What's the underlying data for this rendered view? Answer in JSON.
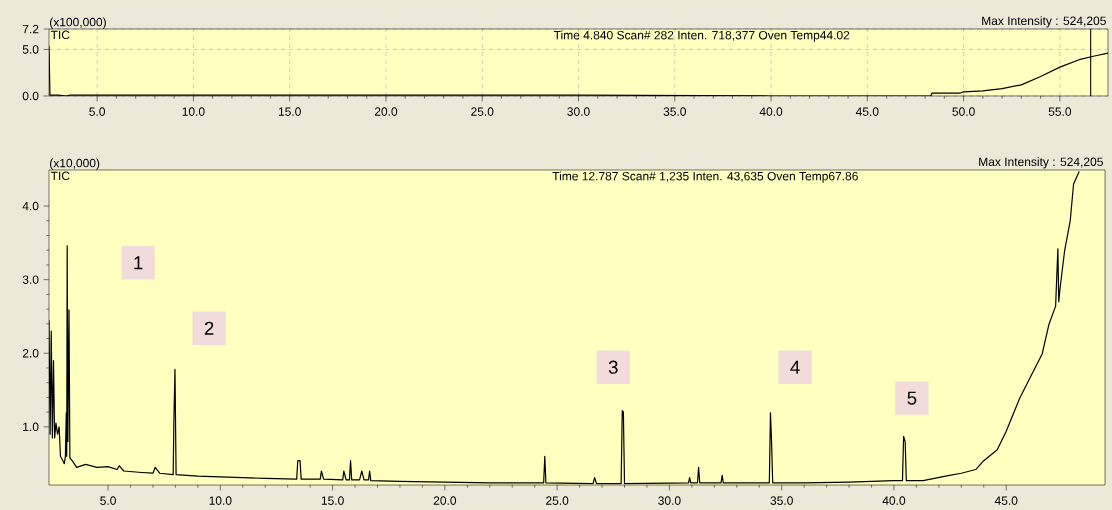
{
  "chart_data": [
    {
      "type": "line",
      "ylabel": "(x100,000)",
      "xlim": [
        2.5,
        57.5
      ],
      "ylim": [
        0.0,
        7.2
      ],
      "grid": true,
      "xticks": [
        {
          "value": 5,
          "label": "5.0"
        },
        {
          "value": 10,
          "label": "10.0"
        },
        {
          "value": 15,
          "label": "15.0"
        },
        {
          "value": 20,
          "label": "20.0"
        },
        {
          "value": 25,
          "label": "25.0"
        },
        {
          "value": 30,
          "label": "30.0"
        },
        {
          "value": 35,
          "label": "35.0"
        },
        {
          "value": 40,
          "label": "40.0"
        },
        {
          "value": 45,
          "label": "45.0"
        },
        {
          "value": 50,
          "label": "50.0"
        },
        {
          "value": 55,
          "label": "55.0"
        }
      ],
      "yticks": [
        {
          "value": 0,
          "label": "0.0"
        },
        {
          "value": 5,
          "label": "5.0"
        },
        {
          "value": 7.2,
          "label": "7.2"
        }
      ],
      "annotations": [
        "TIC",
        "Time     4.840     Scan#     282     Inten.             718,377     Oven Temp44.02",
        "Max Intensity : 524,205"
      ],
      "ref_lines": [
        {
          "axis": "x",
          "value": 56.6,
          "color": "#000000"
        }
      ],
      "series": [
        {
          "color": "#000000",
          "x": [
            2.5,
            2.55,
            3.0,
            3.4,
            3.6,
            10,
            20,
            30,
            40,
            45,
            47.3,
            48.3,
            48.35,
            49.8,
            50,
            51,
            52,
            53,
            54,
            55,
            56,
            56.8,
            57.5
          ],
          "values": [
            5.4,
            0.1,
            0.1,
            0.0,
            0.1,
            0.1,
            0.1,
            0.1,
            0.0,
            0.0,
            0.0,
            0.0,
            0.3,
            0.3,
            0.45,
            0.55,
            0.8,
            1.2,
            2.1,
            3.1,
            3.9,
            4.3,
            4.6
          ]
        }
      ]
    },
    {
      "type": "line",
      "ylabel": "(x10,000)",
      "xlim": [
        2.37,
        49.4
      ],
      "ylim": [
        0.21,
        4.49
      ],
      "grid": false,
      "xticks": [
        {
          "value": 5,
          "label": "5.0"
        },
        {
          "value": 10,
          "label": "10.0"
        },
        {
          "value": 15,
          "label": "15.0"
        },
        {
          "value": 20,
          "label": "20.0"
        },
        {
          "value": 25,
          "label": "25.0"
        },
        {
          "value": 30,
          "label": "30.0"
        },
        {
          "value": 35,
          "label": "35.0"
        },
        {
          "value": 40,
          "label": "40.0"
        },
        {
          "value": 45,
          "label": "45.0"
        }
      ],
      "yticks": [
        {
          "value": 1,
          "label": "1.0"
        },
        {
          "value": 2,
          "label": "2.0"
        },
        {
          "value": 3,
          "label": "3.0"
        },
        {
          "value": 4,
          "label": "4.0"
        }
      ],
      "annotations": [
        "TIC",
        "Time     12.787     Scan#  1,235     Inten.              43,635     Oven Temp67.86",
        "Max Intensity : 524,205",
        {
          "text": "1",
          "x": 6.34,
          "y": 3.23
        },
        {
          "text": "2",
          "x": 9.5,
          "y": 2.34
        },
        {
          "text": "3",
          "x": 27.5,
          "y": 1.81
        },
        {
          "text": "4",
          "x": 35.6,
          "y": 1.81
        },
        {
          "text": "5",
          "x": 40.8,
          "y": 1.39
        }
      ],
      "series": [
        {
          "color": "#000000",
          "x": [
            2.37,
            2.42,
            2.47,
            2.52,
            2.57,
            2.62,
            2.68,
            2.75,
            2.82,
            2.88,
            2.97,
            3.05,
            3.1,
            3.14,
            3.16,
            3.18,
            3.21,
            3.26,
            3.3,
            3.45,
            3.6,
            4.0,
            4.5,
            5.0,
            5.4,
            5.5,
            5.7,
            6.5,
            7.0,
            7.1,
            7.3,
            7.9,
            7.93,
            7.98,
            8.03,
            9.0,
            10.0,
            11.0,
            12.0,
            13.4,
            13.45,
            13.55,
            13.6,
            14.45,
            14.5,
            14.6,
            15.45,
            15.5,
            15.6,
            15.75,
            15.8,
            15.85,
            16.2,
            16.3,
            16.4,
            16.6,
            16.65,
            16.7,
            18.0,
            20.0,
            22.0,
            24.4,
            24.45,
            24.5,
            26.6,
            26.67,
            26.75,
            27.85,
            27.9,
            27.95,
            28.0,
            30.85,
            30.9,
            30.95,
            31.25,
            31.3,
            31.35,
            32.3,
            32.35,
            32.4,
            34.45,
            34.5,
            34.55,
            34.6,
            36.0,
            38.0,
            40.0,
            40.38,
            40.43,
            40.5,
            40.55,
            41.3,
            42.3,
            43.0,
            43.64,
            44.0,
            44.6,
            45.0,
            45.6,
            46.1,
            46.6,
            46.9,
            47.2,
            47.3,
            47.34,
            47.4,
            47.6,
            47.85,
            48.0,
            48.25
          ],
          "values": [
            2.45,
            0.9,
            2.3,
            0.85,
            1.9,
            0.85,
            1.05,
            0.9,
            1.0,
            0.6,
            0.55,
            0.5,
            0.6,
            1.19,
            0.6,
            3.46,
            0.8,
            2.59,
            0.58,
            0.52,
            0.45,
            0.49,
            0.45,
            0.46,
            0.42,
            0.47,
            0.4,
            0.38,
            0.37,
            0.45,
            0.37,
            0.35,
            1.06,
            1.78,
            0.35,
            0.33,
            0.32,
            0.31,
            0.3,
            0.29,
            0.54,
            0.54,
            0.29,
            0.29,
            0.4,
            0.29,
            0.28,
            0.4,
            0.28,
            0.28,
            0.54,
            0.28,
            0.28,
            0.4,
            0.28,
            0.28,
            0.4,
            0.27,
            0.26,
            0.25,
            0.24,
            0.24,
            0.6,
            0.24,
            0.23,
            0.31,
            0.23,
            0.23,
            1.22,
            1.2,
            0.23,
            0.24,
            0.31,
            0.24,
            0.24,
            0.45,
            0.24,
            0.24,
            0.34,
            0.24,
            0.24,
            1.19,
            0.79,
            0.24,
            0.24,
            0.25,
            0.27,
            0.27,
            0.87,
            0.8,
            0.27,
            0.27,
            0.33,
            0.37,
            0.42,
            0.54,
            0.69,
            0.94,
            1.39,
            1.69,
            1.99,
            2.39,
            2.64,
            3.42,
            2.7,
            2.89,
            3.39,
            3.8,
            4.3,
            4.47
          ]
        }
      ]
    }
  ]
}
